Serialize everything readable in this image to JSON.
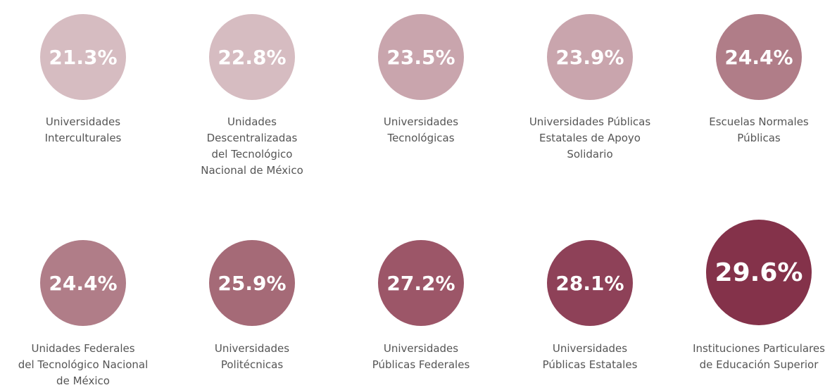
{
  "chart_data": {
    "type": "bubble",
    "categories": [
      "Universidades\nInterculturales",
      "Unidades\nDescentralizadas\ndel Tecnológico\nNacional de México",
      "Universidades\nTecnológicas",
      "Universidades Públicas\nEstatales de Apoyo\nSolidario",
      "Escuelas Normales\nPúblicas",
      "Unidades Federales\ndel Tecnológico Nacional\nde México",
      "Universidades\nPolitécnicas",
      "Universidades\nPúblicas Federales",
      "Universidades\nPúblicas Estatales",
      "Instituciones Particulares\nde Educación Superior"
    ],
    "values": [
      21.3,
      22.8,
      23.5,
      23.9,
      24.4,
      24.4,
      25.9,
      27.2,
      28.1,
      29.6
    ],
    "value_labels": [
      "21.3%",
      "22.8%",
      "23.5%",
      "23.9%",
      "24.4%",
      "24.4%",
      "25.9%",
      "27.2%",
      "28.1%",
      "29.6%"
    ],
    "colors": [
      "#d6bcc1",
      "#d6bcc1",
      "#c9a5ad",
      "#c9a5ad",
      "#b07d88",
      "#b07d88",
      "#a56a77",
      "#9c5668",
      "#8e4158",
      "#84324a"
    ]
  }
}
